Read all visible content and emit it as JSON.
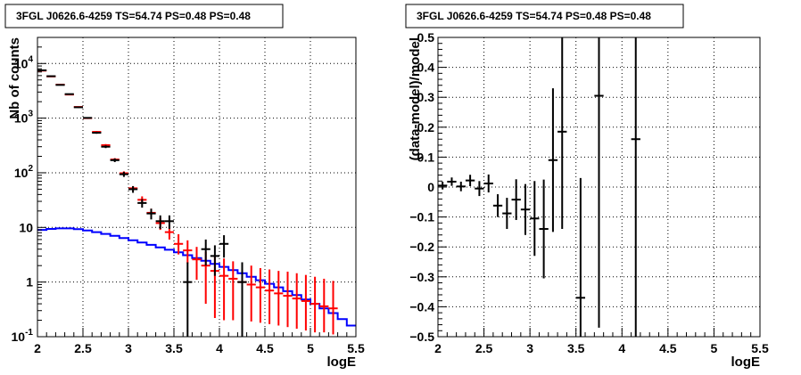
{
  "chart_data": [
    {
      "type": "scatter",
      "title": "3FGL J0626.6-4259 TS=54.74 PS=0.48 PS=0.48",
      "xlabel": "logE",
      "ylabel": "Nb of counts",
      "log_y": true,
      "xlim": [
        2,
        5.5
      ],
      "ylim": [
        0.1,
        30000
      ],
      "x_ticks": [
        "2",
        "2.5",
        "3",
        "3.5",
        "4",
        "4.5",
        "5",
        "5.5"
      ],
      "y_ticks": [
        {
          "value": 0.1,
          "label": "10-1",
          "base": "10",
          "exp": "-1"
        },
        {
          "value": 1,
          "label": "1",
          "base": "1",
          "exp": ""
        },
        {
          "value": 10,
          "label": "10",
          "base": "10",
          "exp": ""
        },
        {
          "value": 100,
          "label": "102",
          "base": "10",
          "exp": "2"
        },
        {
          "value": 1000,
          "label": "103",
          "base": "10",
          "exp": "3"
        },
        {
          "value": 10000,
          "label": "104",
          "base": "10",
          "exp": "4"
        }
      ],
      "grid": true,
      "bin_width": 0.1,
      "series": [
        {
          "color": "#ff0000",
          "style": "errorbar",
          "points": [
            {
              "x": 2.05,
              "y": 7400,
              "lo": 7300,
              "hi": 7500
            },
            {
              "x": 2.15,
              "y": 5800,
              "lo": 5720,
              "hi": 5880
            },
            {
              "x": 2.25,
              "y": 4100,
              "lo": 4040,
              "hi": 4160
            },
            {
              "x": 2.35,
              "y": 2700,
              "lo": 2650,
              "hi": 2750
            },
            {
              "x": 2.45,
              "y": 1600,
              "lo": 1560,
              "hi": 1640
            },
            {
              "x": 2.55,
              "y": 1000,
              "lo": 970,
              "hi": 1030
            },
            {
              "x": 2.65,
              "y": 560,
              "lo": 540,
              "hi": 580
            },
            {
              "x": 2.75,
              "y": 320,
              "lo": 305,
              "hi": 335
            },
            {
              "x": 2.85,
              "y": 175,
              "lo": 165,
              "hi": 185
            },
            {
              "x": 2.95,
              "y": 98,
              "lo": 90,
              "hi": 106
            },
            {
              "x": 3.05,
              "y": 52,
              "lo": 47,
              "hi": 57
            },
            {
              "x": 3.15,
              "y": 32,
              "lo": 27,
              "hi": 37
            },
            {
              "x": 3.25,
              "y": 18.5,
              "lo": 15,
              "hi": 22
            },
            {
              "x": 3.35,
              "y": 12,
              "lo": 9,
              "hi": 15
            },
            {
              "x": 3.45,
              "y": 8.2,
              "lo": 6,
              "hi": 11
            },
            {
              "x": 3.55,
              "y": 5,
              "lo": 3.2,
              "hi": 7.5
            },
            {
              "x": 3.65,
              "y": 3.8,
              "lo": 2.2,
              "hi": 5.8
            },
            {
              "x": 3.75,
              "y": 2.6,
              "lo": 1.1,
              "hi": 4.4
            },
            {
              "x": 3.85,
              "y": 2.0,
              "lo": 0.4,
              "hi": 3.6
            },
            {
              "x": 3.95,
              "y": 1.6,
              "lo": 0.22,
              "hi": 3.0
            },
            {
              "x": 4.05,
              "y": 1.3,
              "lo": 0.2,
              "hi": 2.7
            },
            {
              "x": 4.15,
              "y": 1.15,
              "lo": 0.2,
              "hi": 2.4
            },
            {
              "x": 4.25,
              "y": 1.0,
              "lo": 0.2,
              "hi": 2.2
            },
            {
              "x": 4.35,
              "y": 0.9,
              "lo": 0.19,
              "hi": 2.0
            },
            {
              "x": 4.45,
              "y": 0.8,
              "lo": 0.18,
              "hi": 1.8
            },
            {
              "x": 4.55,
              "y": 0.7,
              "lo": 0.17,
              "hi": 1.7
            },
            {
              "x": 4.65,
              "y": 0.62,
              "lo": 0.16,
              "hi": 1.6
            },
            {
              "x": 4.75,
              "y": 0.56,
              "lo": 0.15,
              "hi": 1.55
            },
            {
              "x": 4.85,
              "y": 0.5,
              "lo": 0.14,
              "hi": 1.45
            },
            {
              "x": 4.95,
              "y": 0.45,
              "lo": 0.13,
              "hi": 1.35
            },
            {
              "x": 5.05,
              "y": 0.4,
              "lo": 0.12,
              "hi": 1.25
            },
            {
              "x": 5.15,
              "y": 0.36,
              "lo": 0.12,
              "hi": 1.15
            },
            {
              "x": 5.25,
              "y": 0.33,
              "lo": 0.11,
              "hi": 1.05
            }
          ]
        },
        {
          "color": "#000000",
          "style": "errorbar",
          "points": [
            {
              "x": 2.05,
              "y": 7500,
              "lo": 7400,
              "hi": 7600
            },
            {
              "x": 2.15,
              "y": 5850,
              "lo": 5760,
              "hi": 5940
            },
            {
              "x": 2.25,
              "y": 4050,
              "lo": 3990,
              "hi": 4110
            },
            {
              "x": 2.35,
              "y": 2750,
              "lo": 2700,
              "hi": 2800
            },
            {
              "x": 2.45,
              "y": 1580,
              "lo": 1540,
              "hi": 1620
            },
            {
              "x": 2.55,
              "y": 1010,
              "lo": 980,
              "hi": 1040
            },
            {
              "x": 2.65,
              "y": 540,
              "lo": 517,
              "hi": 563
            },
            {
              "x": 2.75,
              "y": 300,
              "lo": 283,
              "hi": 317
            },
            {
              "x": 2.85,
              "y": 170,
              "lo": 157,
              "hi": 183
            },
            {
              "x": 2.95,
              "y": 94,
              "lo": 84,
              "hi": 104
            },
            {
              "x": 3.05,
              "y": 50,
              "lo": 43,
              "hi": 57
            },
            {
              "x": 3.15,
              "y": 28,
              "lo": 23,
              "hi": 33
            },
            {
              "x": 3.25,
              "y": 18,
              "lo": 14,
              "hi": 22
            },
            {
              "x": 3.35,
              "y": 13,
              "lo": 9.4,
              "hi": 16.6
            },
            {
              "x": 3.45,
              "y": 13,
              "lo": 9.4,
              "hi": 16.6
            },
            {
              "x": 3.65,
              "y": 1,
              "lo": 0.1,
              "hi": 2.3
            },
            {
              "x": 3.85,
              "y": 4,
              "lo": 2,
              "hi": 6
            },
            {
              "x": 3.95,
              "y": 3,
              "lo": 1.3,
              "hi": 4.7
            },
            {
              "x": 4.05,
              "y": 5,
              "lo": 2.8,
              "hi": 7.2
            },
            {
              "x": 4.25,
              "y": 1,
              "lo": 0.1,
              "hi": 2.3
            }
          ]
        },
        {
          "color": "#0000ff",
          "style": "step",
          "points": [
            {
              "x": 2.05,
              "y": 9.0
            },
            {
              "x": 2.15,
              "y": 9.4
            },
            {
              "x": 2.25,
              "y": 9.6
            },
            {
              "x": 2.35,
              "y": 9.6
            },
            {
              "x": 2.45,
              "y": 9.3
            },
            {
              "x": 2.55,
              "y": 8.8
            },
            {
              "x": 2.65,
              "y": 8.2
            },
            {
              "x": 2.75,
              "y": 7.6
            },
            {
              "x": 2.85,
              "y": 7.0
            },
            {
              "x": 2.95,
              "y": 6.4
            },
            {
              "x": 3.05,
              "y": 5.8
            },
            {
              "x": 3.15,
              "y": 5.3
            },
            {
              "x": 3.25,
              "y": 4.8
            },
            {
              "x": 3.35,
              "y": 4.3
            },
            {
              "x": 3.45,
              "y": 3.9
            },
            {
              "x": 3.55,
              "y": 3.5
            },
            {
              "x": 3.65,
              "y": 3.1
            },
            {
              "x": 3.75,
              "y": 2.75
            },
            {
              "x": 3.85,
              "y": 2.45
            },
            {
              "x": 3.95,
              "y": 2.15
            },
            {
              "x": 4.05,
              "y": 1.9
            },
            {
              "x": 4.15,
              "y": 1.65
            },
            {
              "x": 4.25,
              "y": 1.45
            },
            {
              "x": 4.35,
              "y": 1.25
            },
            {
              "x": 4.45,
              "y": 1.08
            },
            {
              "x": 4.55,
              "y": 0.93
            },
            {
              "x": 4.65,
              "y": 0.8
            },
            {
              "x": 4.75,
              "y": 0.68
            },
            {
              "x": 4.85,
              "y": 0.58
            },
            {
              "x": 4.95,
              "y": 0.48
            },
            {
              "x": 5.05,
              "y": 0.4
            },
            {
              "x": 5.15,
              "y": 0.33
            },
            {
              "x": 5.25,
              "y": 0.27
            },
            {
              "x": 5.35,
              "y": 0.21
            },
            {
              "x": 5.45,
              "y": 0.16
            }
          ]
        }
      ]
    },
    {
      "type": "scatter",
      "title": "3FGL J0626.6-4259 TS=54.74 PS=0.48 PS=0.48",
      "xlabel": "logE",
      "ylabel": "(data-model)/model",
      "xlim": [
        2,
        5.5
      ],
      "ylim": [
        -0.5,
        0.5
      ],
      "x_ticks": [
        "2",
        "2.5",
        "3",
        "3.5",
        "4",
        "4.5",
        "5",
        "5.5"
      ],
      "y_ticks": [
        "-0.5",
        "-0.4",
        "-0.3",
        "-0.2",
        "-0.1",
        "0",
        "0.1",
        "0.2",
        "0.3",
        "0.4",
        "0.5"
      ],
      "grid": true,
      "bin_width": 0.1,
      "series": [
        {
          "color": "#000000",
          "style": "errorbar",
          "points": [
            {
              "x": 2.05,
              "y": 0.005,
              "lo": -0.008,
              "hi": 0.018
            },
            {
              "x": 2.15,
              "y": 0.018,
              "lo": 0.004,
              "hi": 0.032
            },
            {
              "x": 2.25,
              "y": 0.002,
              "lo": -0.014,
              "hi": 0.018
            },
            {
              "x": 2.35,
              "y": 0.022,
              "lo": 0.003,
              "hi": 0.041
            },
            {
              "x": 2.45,
              "y": -0.005,
              "lo": -0.03,
              "hi": 0.02
            },
            {
              "x": 2.55,
              "y": 0.012,
              "lo": -0.018,
              "hi": 0.042
            },
            {
              "x": 2.65,
              "y": -0.062,
              "lo": -0.1,
              "hi": -0.024
            },
            {
              "x": 2.75,
              "y": -0.088,
              "lo": -0.14,
              "hi": -0.036
            },
            {
              "x": 2.85,
              "y": -0.042,
              "lo": -0.11,
              "hi": 0.026
            },
            {
              "x": 2.95,
              "y": -0.075,
              "lo": -0.16,
              "hi": 0.01
            },
            {
              "x": 3.05,
              "y": -0.105,
              "lo": -0.23,
              "hi": 0.02
            },
            {
              "x": 3.15,
              "y": -0.14,
              "lo": -0.305,
              "hi": 0.025
            },
            {
              "x": 3.25,
              "y": 0.09,
              "lo": -0.15,
              "hi": 0.33
            },
            {
              "x": 3.35,
              "y": 0.185,
              "lo": -0.14,
              "hi": 0.5
            },
            {
              "x": 3.55,
              "y": -0.37,
              "lo": -0.5,
              "hi": 0.03
            },
            {
              "x": 3.75,
              "y": 0.305,
              "lo": -0.47,
              "hi": 0.5
            },
            {
              "x": 4.15,
              "y": 0.16,
              "lo": -0.5,
              "hi": 0.5
            }
          ]
        }
      ]
    }
  ]
}
